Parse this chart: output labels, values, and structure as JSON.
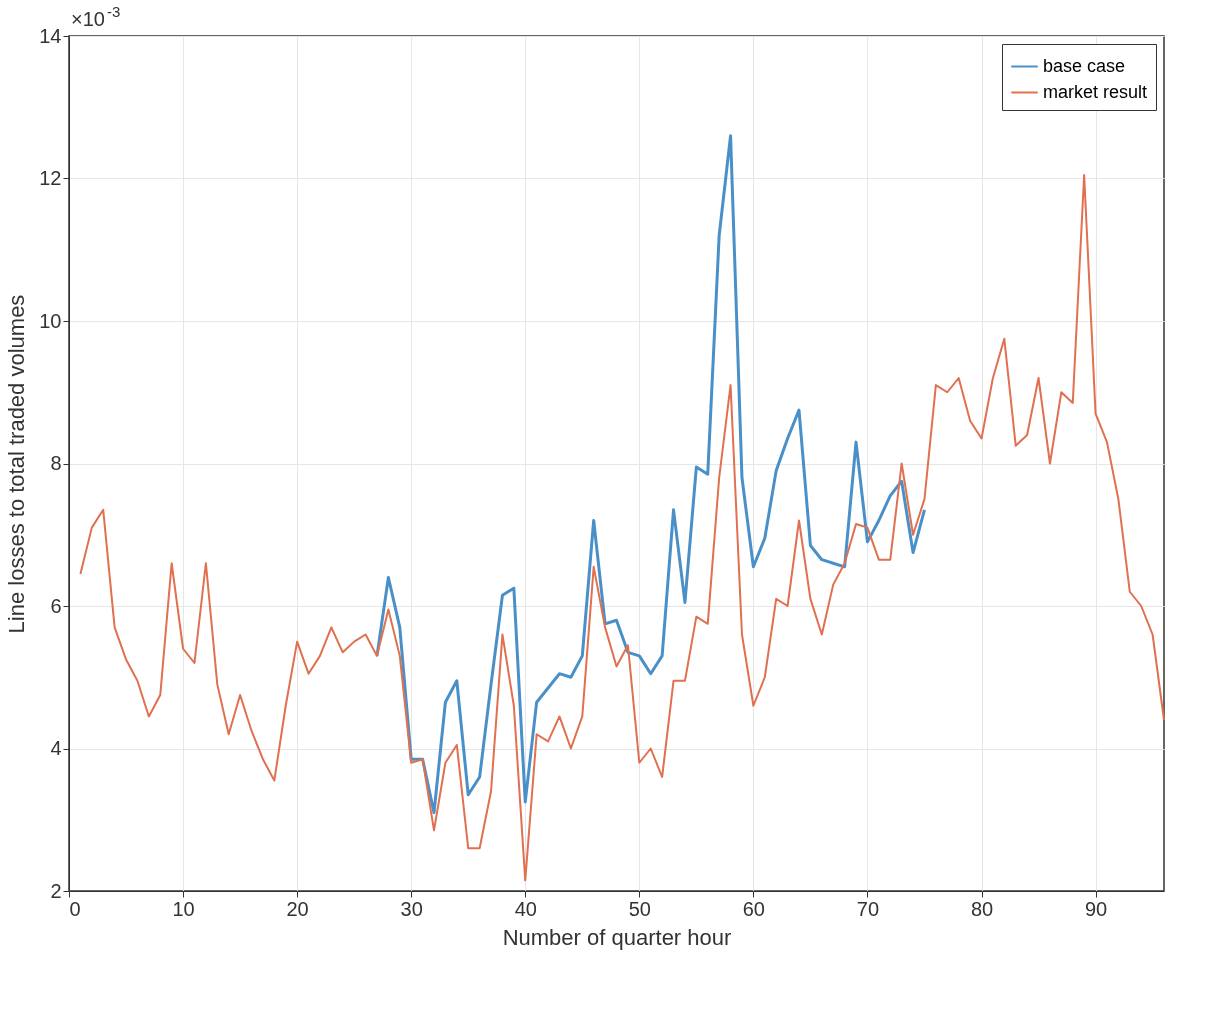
{
  "chart_data": {
    "type": "line",
    "xlabel": "Number of quarter hour",
    "ylabel": "Line losses to total traded volumes",
    "annotations": [
      "×10$^{-3}$"
    ],
    "x": [
      1,
      2,
      3,
      4,
      5,
      6,
      7,
      8,
      9,
      10,
      11,
      12,
      13,
      14,
      15,
      16,
      17,
      18,
      19,
      20,
      21,
      22,
      23,
      24,
      25,
      26,
      27,
      28,
      29,
      30,
      31,
      32,
      33,
      34,
      35,
      36,
      37,
      38,
      39,
      40,
      41,
      42,
      43,
      44,
      45,
      46,
      47,
      48,
      49,
      50,
      51,
      52,
      53,
      54,
      55,
      56,
      57,
      58,
      59,
      60,
      61,
      62,
      63,
      64,
      65,
      66,
      67,
      68,
      69,
      70,
      71,
      72,
      73,
      74,
      75,
      76,
      77,
      78,
      79,
      80,
      81,
      82,
      83,
      84,
      85,
      86,
      87,
      88,
      89,
      90,
      91,
      92,
      93,
      94,
      95,
      96
    ],
    "series": [
      {
        "name": "base case",
        "color": "#4a90c8",
        "values": [
          null,
          null,
          null,
          null,
          null,
          null,
          null,
          null,
          null,
          null,
          null,
          null,
          null,
          null,
          null,
          null,
          null,
          null,
          null,
          null,
          null,
          null,
          null,
          null,
          null,
          null,
          5.3,
          6.4,
          5.7,
          3.85,
          3.85,
          3.1,
          4.65,
          4.95,
          3.35,
          3.6,
          4.9,
          6.15,
          6.25,
          3.25,
          4.65,
          4.85,
          5.05,
          5.0,
          5.3,
          7.2,
          5.75,
          5.8,
          5.35,
          5.3,
          5.05,
          5.3,
          7.35,
          6.05,
          7.95,
          7.85,
          11.2,
          12.6,
          7.8,
          6.55,
          6.95,
          7.9,
          8.35,
          8.75,
          6.85,
          6.65,
          6.6,
          6.55,
          8.3,
          6.9,
          7.2,
          7.55,
          7.75,
          6.75,
          7.35,
          null,
          null,
          null,
          null,
          null,
          null,
          null,
          null,
          null,
          null,
          null,
          null,
          null,
          null,
          null,
          null,
          null,
          null,
          null,
          null,
          null
        ]
      },
      {
        "name": "market result",
        "color": "#e07050",
        "values": [
          6.45,
          7.1,
          7.35,
          5.7,
          5.25,
          4.95,
          4.45,
          4.75,
          6.6,
          5.4,
          5.2,
          6.6,
          4.9,
          4.2,
          4.75,
          4.25,
          3.85,
          3.55,
          4.6,
          5.5,
          5.05,
          5.3,
          5.7,
          5.35,
          5.5,
          5.6,
          5.3,
          5.95,
          5.3,
          3.8,
          3.85,
          2.85,
          3.8,
          4.05,
          2.6,
          2.6,
          3.4,
          5.6,
          4.6,
          2.15,
          4.2,
          4.1,
          4.45,
          4.0,
          4.45,
          6.55,
          5.7,
          5.15,
          5.45,
          3.8,
          4.0,
          3.6,
          4.95,
          4.95,
          5.85,
          5.75,
          7.8,
          9.1,
          5.6,
          4.6,
          5.0,
          6.1,
          6.0,
          7.2,
          6.1,
          5.6,
          6.3,
          6.6,
          7.15,
          7.1,
          6.65,
          6.65,
          8.0,
          7.0,
          7.5,
          9.1,
          9.0,
          9.2,
          8.6,
          8.35,
          9.2,
          9.75,
          8.25,
          8.4,
          9.2,
          8.0,
          9.0,
          8.85,
          12.05,
          8.7,
          8.3,
          7.5,
          6.2,
          6.0,
          5.6,
          4.4
        ]
      }
    ],
    "xlim": [
      0,
      96
    ],
    "xticks": [
      0,
      10,
      20,
      30,
      40,
      50,
      60,
      70,
      80,
      90
    ],
    "ylim": [
      2,
      14
    ],
    "yticks": [
      2,
      4,
      6,
      8,
      10,
      12,
      14
    ],
    "grid": true,
    "legend": "top right",
    "line_style": "solid",
    "marker": "none"
  }
}
